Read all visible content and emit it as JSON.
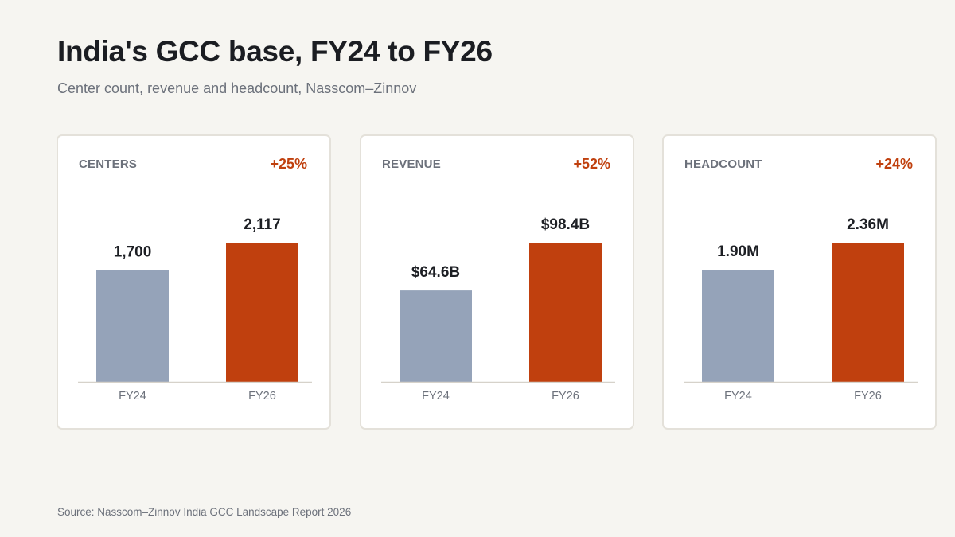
{
  "title": "India's GCC base, FY24 to FY26",
  "subtitle": "Center count, revenue and headcount, Nasscom–Zinnov",
  "source": "Source: Nasscom–Zinnov India GCC Landscape Report 2026",
  "colors": {
    "fy24": "#95a3b9",
    "fy26": "#c0400e",
    "accent": "#c0400e"
  },
  "chart_data": [
    {
      "type": "bar",
      "panel_label": "CENTERS",
      "change_label": "+25%",
      "categories": [
        "FY24",
        "FY26"
      ],
      "values": [
        1700,
        2117
      ],
      "data_labels": [
        "1,700",
        "2,117"
      ],
      "ylim": [
        0,
        2117
      ]
    },
    {
      "type": "bar",
      "panel_label": "REVENUE",
      "change_label": "+52%",
      "categories": [
        "FY24",
        "FY26"
      ],
      "values": [
        64.6,
        98.4
      ],
      "data_labels": [
        "$64.6B",
        "$98.4B"
      ],
      "ylim": [
        0,
        98.4
      ]
    },
    {
      "type": "bar",
      "panel_label": "HEADCOUNT",
      "change_label": "+24%",
      "categories": [
        "FY24",
        "FY26"
      ],
      "values": [
        1.9,
        2.36
      ],
      "data_labels": [
        "1.90M",
        "2.36M"
      ],
      "ylim": [
        0,
        2.36
      ]
    }
  ]
}
